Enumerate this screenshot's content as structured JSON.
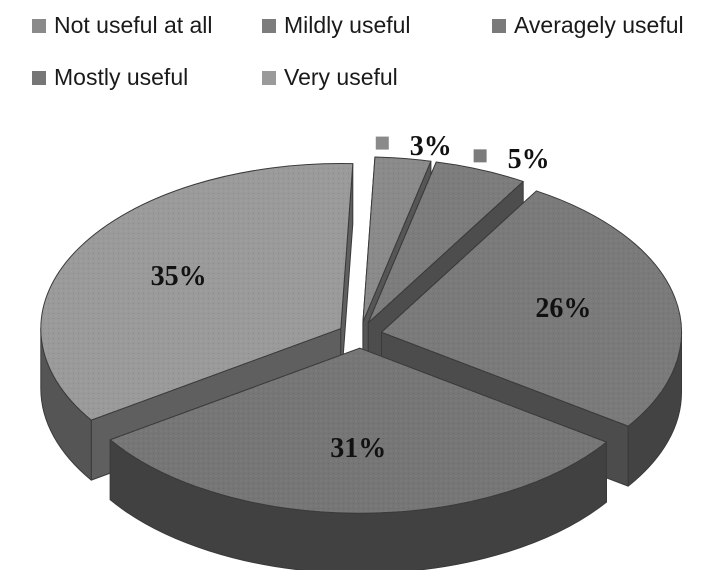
{
  "chart_data": {
    "type": "pie",
    "title": "",
    "style": "3d-exploded",
    "legend_position": "top",
    "categories": [
      "Not useful at all",
      "Mildly useful",
      "Averagely useful",
      "Mostly useful",
      "Very useful"
    ],
    "values": [
      3,
      5,
      26,
      31,
      35
    ],
    "labels": [
      "3%",
      "5%",
      "26%",
      "31%",
      "35%"
    ],
    "colors": {
      "Not useful at all": "#8a8a8a",
      "Mildly useful": "#7c7c7c",
      "Averagely useful": "#7a7a7a",
      "Mostly useful": "#767676",
      "Very useful": "#9a9a9a"
    }
  }
}
